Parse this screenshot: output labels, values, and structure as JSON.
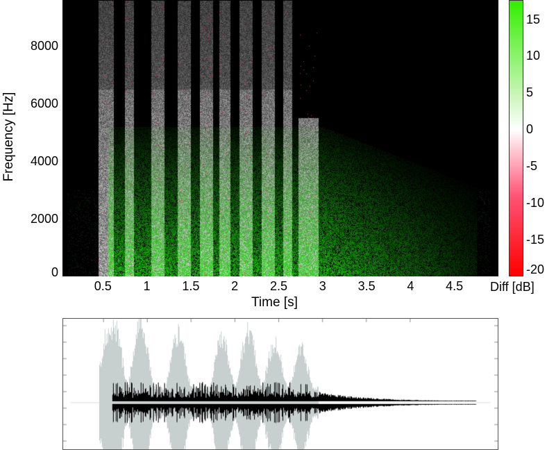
{
  "chart_data": [
    {
      "type": "heatmap",
      "xlabel": "Time [s]",
      "ylabel": "Frequency [Hz]",
      "xlim": [
        0.04,
        5.0
      ],
      "ylim": [
        0,
        9600
      ],
      "xticks": [
        "0.5",
        "1",
        "1.5",
        "2",
        "2.5",
        "3",
        "3.5",
        "4",
        "4.5"
      ],
      "xtick_values": [
        0.5,
        1,
        1.5,
        2,
        2.5,
        3,
        3.5,
        4,
        4.5
      ],
      "yticks": [
        "0",
        "2000",
        "4000",
        "6000",
        "8000"
      ],
      "ytick_values": [
        0,
        2000,
        4000,
        6000,
        8000
      ],
      "colorbar": {
        "label": "Diff [dB]",
        "range": [
          -20,
          17.6
        ],
        "ticks": [
          "15",
          "10",
          "5",
          "0",
          "-5",
          "-10",
          "-15",
          "-20"
        ],
        "tick_values": [
          15,
          10,
          5,
          0,
          -5,
          -10,
          -15,
          -20
        ],
        "colors": {
          "low": "#ff0000",
          "mid": "#ffffff",
          "high": "#33ee00"
        }
      },
      "background": "#000000"
    },
    {
      "type": "line",
      "xlim": [
        0.04,
        5.0
      ],
      "colors": {
        "original": "#c8cfcf",
        "overlay": "#000000"
      }
    }
  ]
}
